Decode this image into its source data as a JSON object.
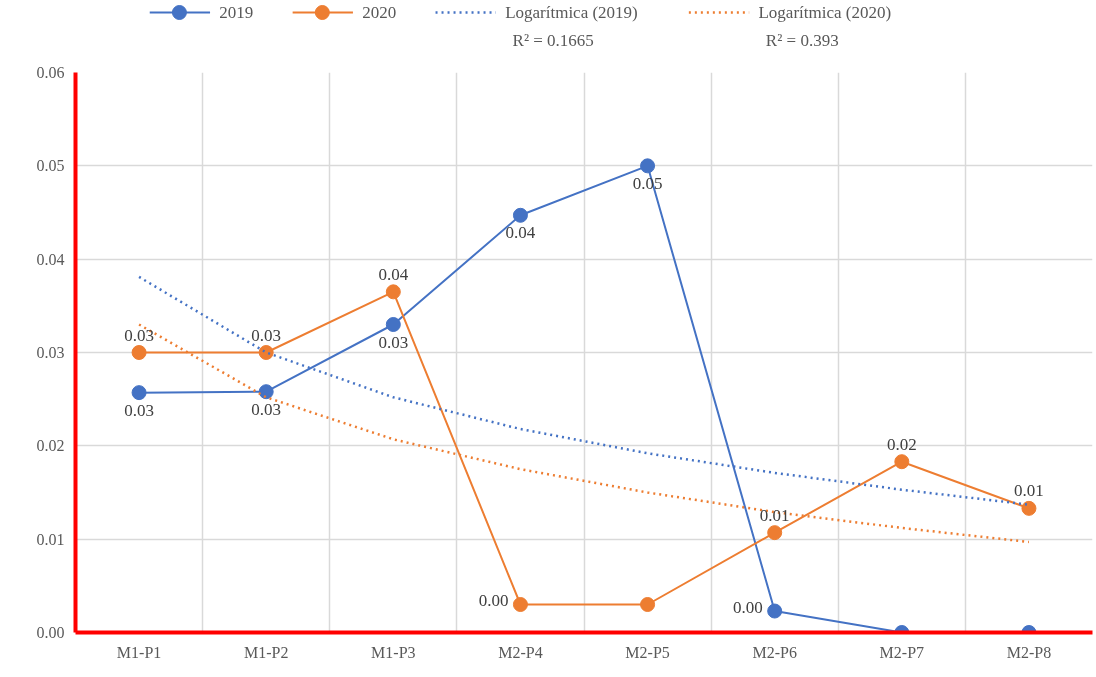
{
  "chart_data": {
    "type": "line",
    "categories": [
      "M1-P1",
      "M1-P2",
      "M1-P3",
      "M2-P4",
      "M2-P5",
      "M2-P6",
      "M2-P7",
      "M2-P8"
    ],
    "series": [
      {
        "name": "2019",
        "color": "#4472c4",
        "marker": "circle",
        "line_style": "solid",
        "values": [
          0.0257,
          0.0258,
          0.033,
          0.0447,
          0.05,
          0.0023,
          0,
          0
        ],
        "value_labels": [
          "0.03",
          "0.03",
          "0.03",
          "0.04",
          "0.05",
          "0.00",
          null,
          null
        ]
      },
      {
        "name": "2020",
        "color": "#ed7d31",
        "marker": "circle",
        "line_style": "solid",
        "values": [
          0.03,
          0.03,
          0.0365,
          0.003,
          0.003,
          0.0107,
          0.0183,
          0.0133
        ],
        "value_labels": [
          "0.03",
          "0.03",
          "0.04",
          "0.00",
          null,
          "0.01",
          "0.02",
          "0.01"
        ]
      },
      {
        "name": "Logarítmica (2019)",
        "color": "#4472c4",
        "marker": "none",
        "line_style": "dotted",
        "values": [
          0.0381,
          0.03,
          0.0252,
          0.0218,
          0.0192,
          0.0171,
          0.0153,
          0.0137
        ]
      },
      {
        "name": "Logarítmica (2020)",
        "color": "#ed7d31",
        "marker": "none",
        "line_style": "dotted",
        "values": [
          0.033,
          0.0252,
          0.0207,
          0.0175,
          0.015,
          0.0129,
          0.0112,
          0.0097
        ]
      }
    ],
    "annotations": [
      "R² = 0.1665",
      "R² = 0.393"
    ],
    "ylim": [
      0,
      0.06
    ],
    "yticks": [
      {
        "value": 0,
        "label": "0.00"
      },
      {
        "value": 0.01,
        "label": "0.01"
      },
      {
        "value": 0.02,
        "label": "0.02"
      },
      {
        "value": 0.03,
        "label": "0.03"
      },
      {
        "value": 0.04,
        "label": "0.04"
      },
      {
        "value": 0.05,
        "label": "0.05"
      },
      {
        "value": 0.06,
        "label": "0.06"
      }
    ],
    "grid": true,
    "legend": "top"
  }
}
